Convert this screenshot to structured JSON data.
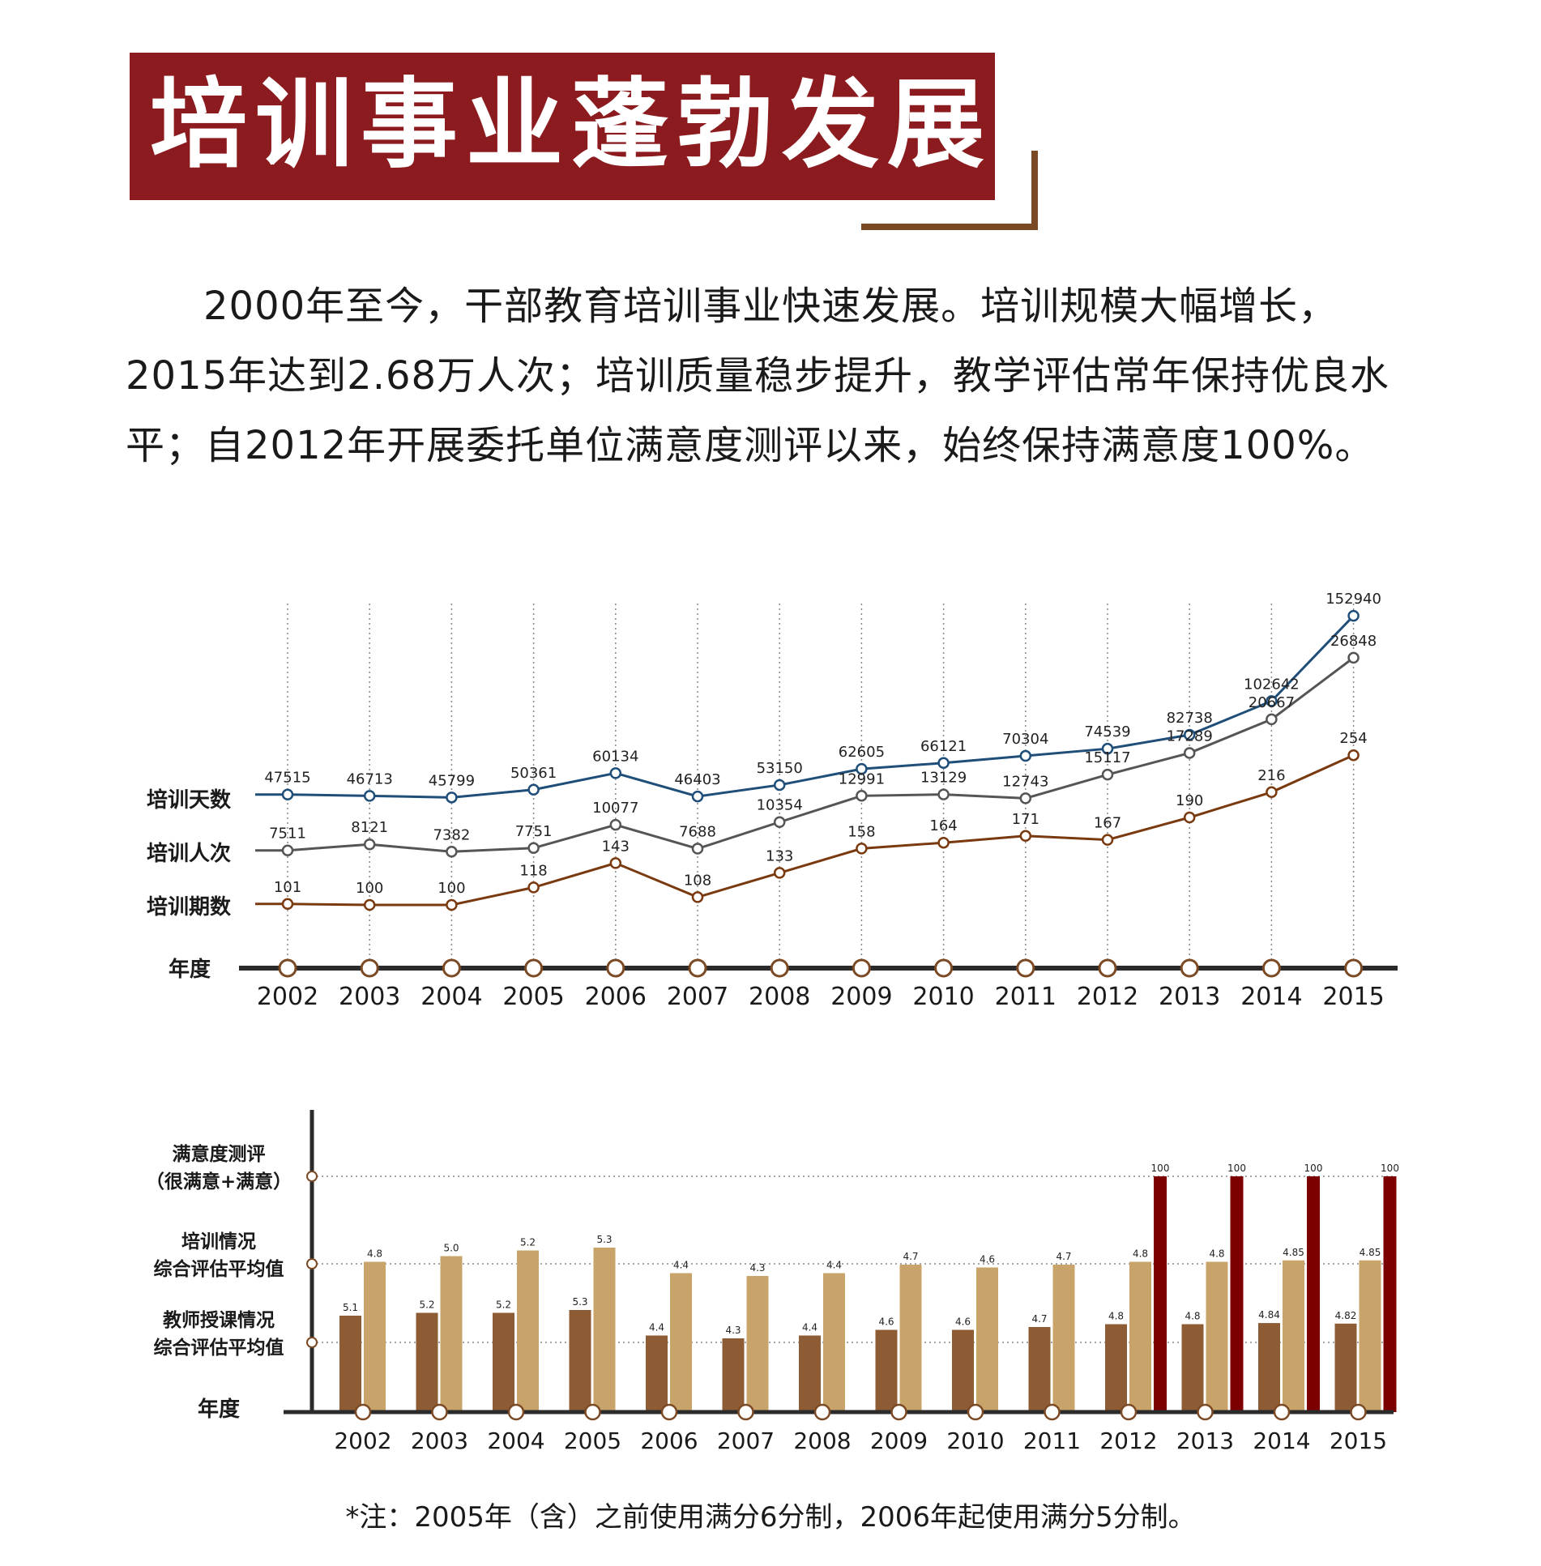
{
  "header": {
    "title": "培训事业蓬勃发展",
    "paragraph": "2000年至今，干部教育培训事业快速发展。培训规模大幅增长，2015年达到2.68万人次；培训质量稳步提升，教学评估常年保持优良水平；自2012年开展委托单位满意度测评以来，始终保持满意度100%。"
  },
  "colors": {
    "title_bg": "#8c1b1f",
    "bracket": "#7b4a25",
    "days_line": "#1f4e79",
    "people_line": "#555555",
    "sessions_line": "#7a3a10",
    "bar_teacher": "#8e5c34",
    "bar_training": "#c9a46a",
    "bar_satisfaction": "#7d0000"
  },
  "chart_data": [
    {
      "type": "line",
      "x": [
        "2002",
        "2003",
        "2004",
        "2005",
        "2006",
        "2007",
        "2008",
        "2009",
        "2010",
        "2011",
        "2012",
        "2013",
        "2014",
        "2015"
      ],
      "xlabel": "年度",
      "series": [
        {
          "name": "培训天数",
          "values": [
            47515,
            46713,
            45799,
            50361,
            60134,
            46403,
            53150,
            62605,
            66121,
            70304,
            74539,
            82738,
            102642,
            152940
          ]
        },
        {
          "name": "培训人次",
          "values": [
            7511,
            8121,
            7382,
            7751,
            10077,
            7688,
            10354,
            12991,
            13129,
            12743,
            15117,
            17289,
            20667,
            26848
          ]
        },
        {
          "name": "培训期数",
          "values": [
            101,
            100,
            100,
            118,
            143,
            108,
            133,
            158,
            164,
            171,
            167,
            190,
            216,
            254
          ]
        }
      ]
    },
    {
      "type": "bar",
      "categories": [
        "2002",
        "2003",
        "2004",
        "2005",
        "2006",
        "2007",
        "2008",
        "2009",
        "2010",
        "2011",
        "2012",
        "2013",
        "2014",
        "2015"
      ],
      "xlabel": "年度",
      "series": [
        {
          "name": "教师授课情况综合评估平均值",
          "values": [
            "5.1",
            "5.2",
            "5.2",
            "5.3",
            "4.4",
            "4.3",
            "4.4",
            "4.6",
            "4.6",
            "4.7",
            "4.8",
            "4.8",
            "4.84",
            "4.82"
          ]
        },
        {
          "name": "培训情况综合评估平均值",
          "values": [
            "4.8",
            "5.0",
            "5.2",
            "5.3",
            "4.4",
            "4.3",
            "4.4",
            "4.7",
            "4.6",
            "4.7",
            "4.8",
            "4.8",
            "4.85",
            "4.85"
          ]
        },
        {
          "name": "满意度测评（很满意+满意）",
          "values": [
            null,
            null,
            null,
            null,
            null,
            null,
            null,
            null,
            null,
            null,
            "100",
            "100",
            "100",
            "100"
          ]
        }
      ],
      "labels": {
        "satisfaction": [
          "满意度测评",
          "（很满意+满意）"
        ],
        "training": [
          "培训情况",
          "综合评估平均值"
        ],
        "teacher": [
          "教师授课情况",
          "综合评估平均值"
        ]
      }
    }
  ],
  "note": "*注：2005年（含）之前使用满分6分制，2006年起使用满分5分制。"
}
